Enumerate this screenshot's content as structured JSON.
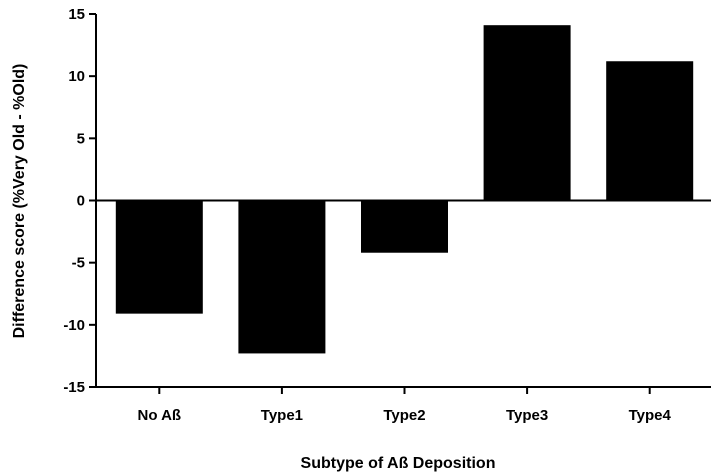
{
  "chart_data": {
    "type": "bar",
    "categories": [
      "No Aß",
      "Type1",
      "Type2",
      "Type3",
      "Type4"
    ],
    "values": [
      -9.1,
      -12.3,
      -4.2,
      14.1,
      11.2
    ],
    "xlabel": "Subtype of Aß Deposition",
    "ylabel": "Difference  score  (%Very  Old  -  %Old)",
    "ylim": [
      -15,
      15
    ],
    "yticks": [
      15,
      10,
      5,
      0,
      -5,
      -10,
      -15
    ],
    "ytick_labels": [
      "15",
      "10",
      "5",
      "0",
      "-5",
      "-10",
      "-15"
    ],
    "grid": false,
    "bar_color": "#000000"
  }
}
